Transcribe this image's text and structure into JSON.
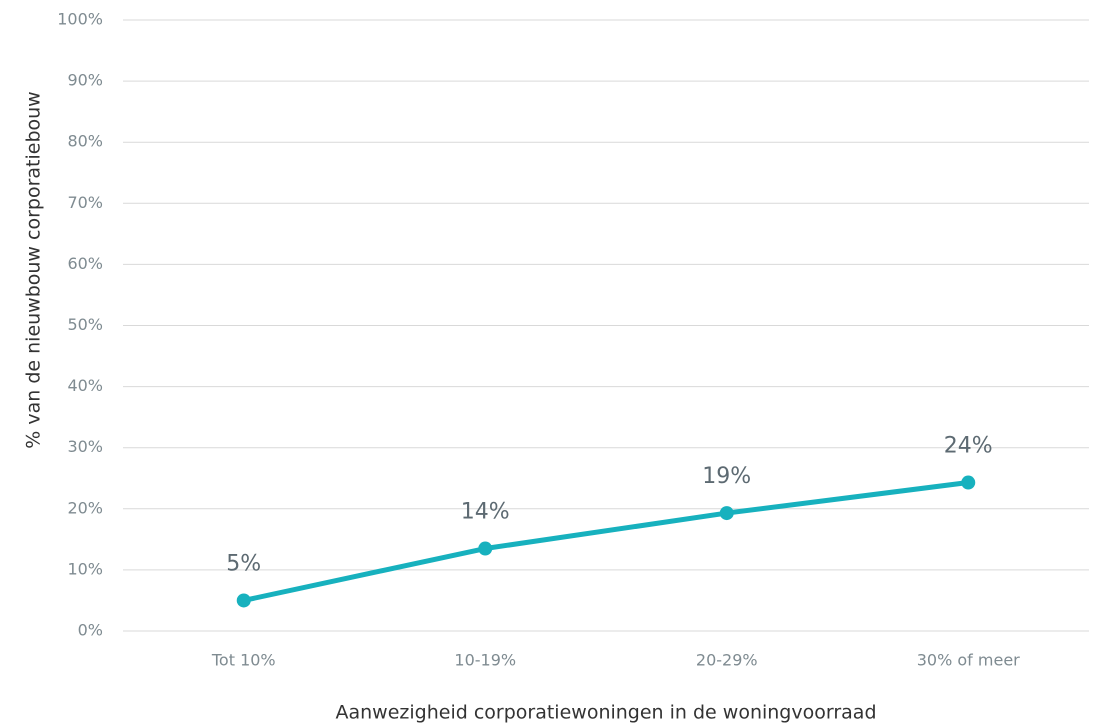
{
  "chart_data": {
    "type": "line",
    "categories": [
      "Tot 10%",
      "10-19%",
      "20-29%",
      "30% of meer"
    ],
    "series": [
      {
        "name": null,
        "color": "#17b1be",
        "values": [
          5,
          13.5,
          19.3,
          24.3
        ],
        "value_labels": [
          "5%",
          "14%",
          "19%",
          "24%"
        ]
      }
    ],
    "ylim": [
      0,
      100
    ],
    "yticks": [
      {
        "value": 0,
        "label": "0%"
      },
      {
        "value": 10,
        "label": "10%"
      },
      {
        "value": 20,
        "label": "20%"
      },
      {
        "value": 30,
        "label": "30%"
      },
      {
        "value": 40,
        "label": "40%"
      },
      {
        "value": 50,
        "label": "50%"
      },
      {
        "value": 60,
        "label": "60%"
      },
      {
        "value": 70,
        "label": "70%"
      },
      {
        "value": 80,
        "label": "80%"
      },
      {
        "value": 90,
        "label": "90%"
      },
      {
        "value": 100,
        "label": "100%"
      }
    ],
    "xlabel": "Aanwezigheid corporatiewoningen in de woningvoorraad",
    "ylabel": "% van de nieuwbouw corporatiebouw",
    "grid": true
  }
}
